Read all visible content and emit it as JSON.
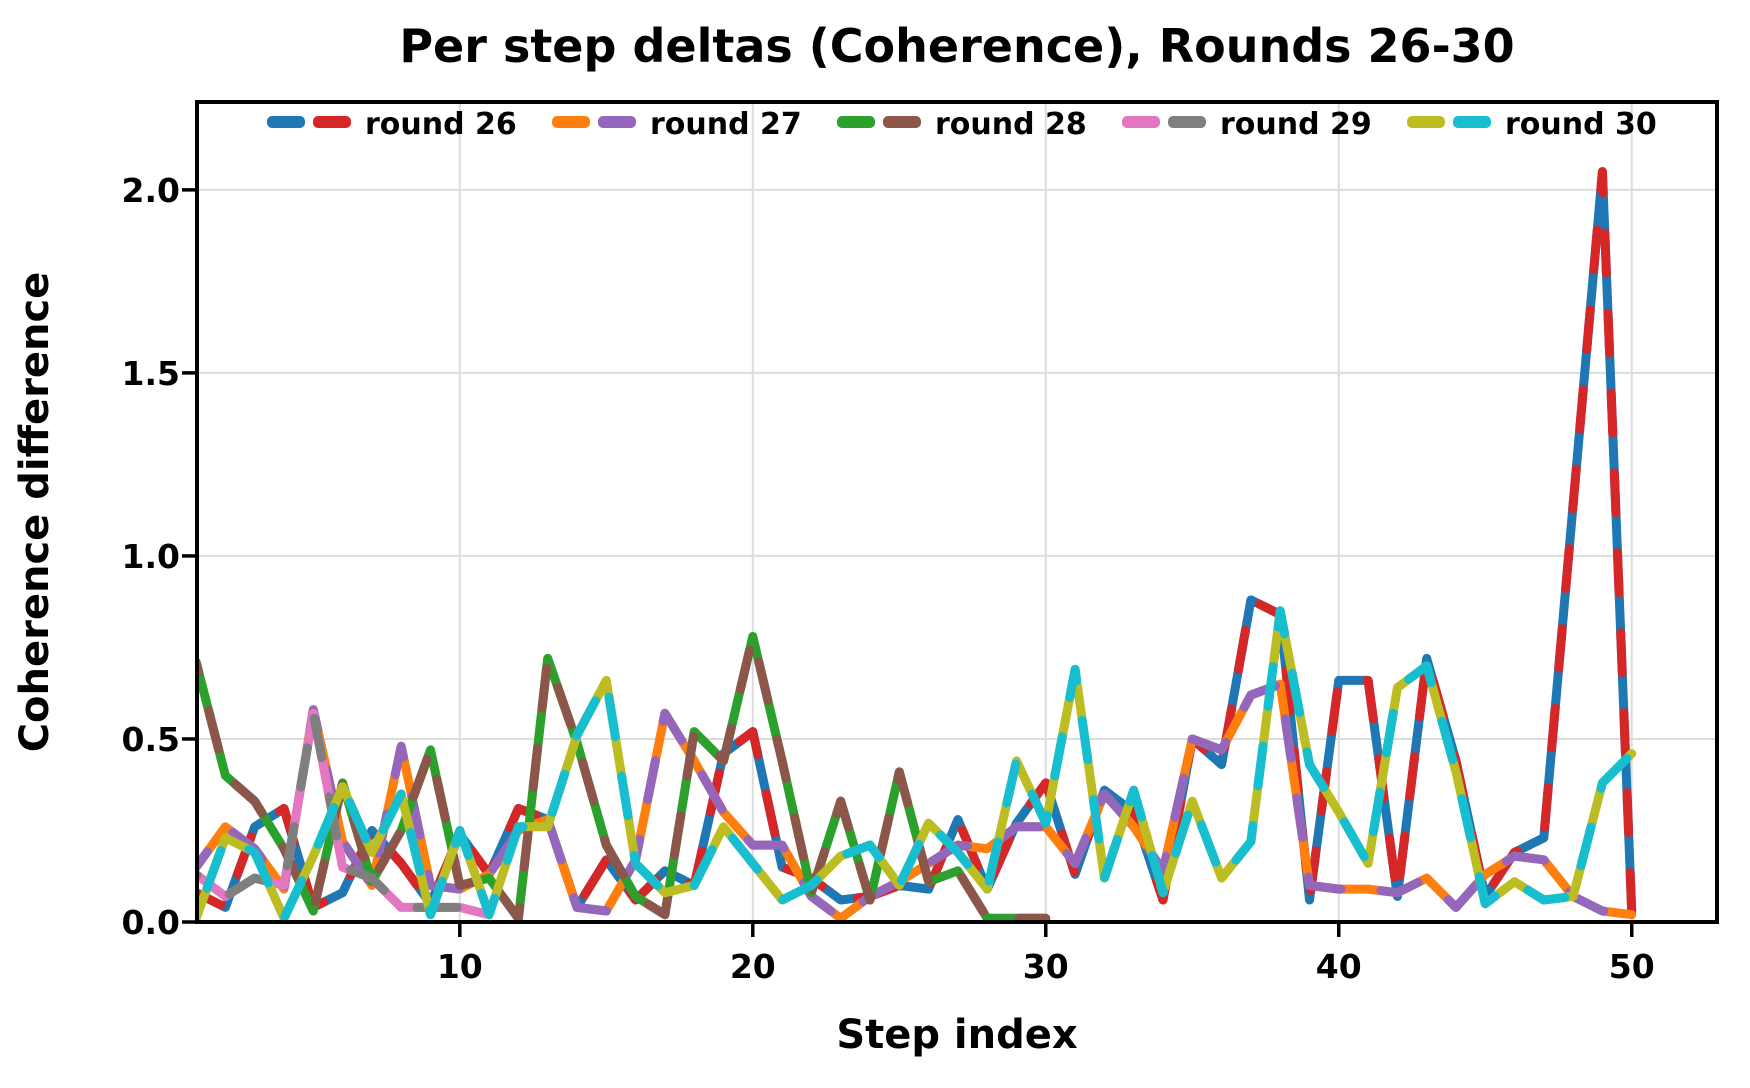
{
  "chart_data": {
    "type": "line",
    "title": "Per step deltas (Coherence), Rounds 26-30",
    "xlabel": "Step index",
    "ylabel": "Coherence difference",
    "xlim": [
      1.03,
      52.91
    ],
    "ylim": [
      0,
      2.24
    ],
    "xticks": [
      10,
      20,
      30,
      40,
      50
    ],
    "yticks": [
      0.0,
      0.5,
      1.0,
      1.5,
      2.0
    ],
    "grid": true,
    "grid_color": "#dcdcdc",
    "legend_position": "top-center",
    "line_width": 9,
    "series": [
      {
        "name": "round 26",
        "colors": [
          "#1f77b4",
          "#d62728"
        ],
        "x_start": 1,
        "values": [
          0.08,
          0.04,
          0.26,
          0.31,
          0.04,
          0.08,
          0.25,
          0.16,
          0.05,
          0.24,
          0.13,
          0.31,
          0.28,
          0.04,
          0.17,
          0.06,
          0.14,
          0.1,
          0.46,
          0.52,
          0.15,
          0.12,
          0.06,
          0.07,
          0.1,
          0.09,
          0.28,
          0.09,
          0.27,
          0.38,
          0.13,
          0.36,
          0.3,
          0.06,
          0.5,
          0.43,
          0.88,
          0.84,
          0.06,
          0.66,
          0.66,
          0.07,
          0.72,
          0.44,
          0.07,
          0.19,
          0.23,
          1.14,
          2.05,
          0.03
        ]
      },
      {
        "name": "round 27",
        "colors": [
          "#ff7f0e",
          "#9467bd"
        ],
        "x_start": 1,
        "values": [
          0.15,
          0.26,
          0.2,
          0.09,
          0.58,
          0.22,
          0.1,
          0.48,
          0.1,
          0.09,
          0.13,
          0.25,
          0.28,
          0.04,
          0.03,
          0.17,
          0.57,
          0.44,
          0.3,
          0.21,
          0.21,
          0.07,
          0.01,
          0.07,
          0.11,
          0.16,
          0.21,
          0.2,
          0.26,
          0.26,
          0.16,
          0.35,
          0.26,
          0.14,
          0.5,
          0.47,
          0.62,
          0.65,
          0.1,
          0.09,
          0.09,
          0.08,
          0.12,
          0.04,
          0.13,
          0.18,
          0.17,
          0.07,
          0.03,
          0.02
        ]
      },
      {
        "name": "round 28",
        "colors": [
          "#2ca02c",
          "#8c564b"
        ],
        "x_start": 1,
        "values": [
          0.71,
          0.4,
          0.33,
          0.2,
          0.03,
          0.38,
          0.11,
          0.25,
          0.47,
          0.1,
          0.12,
          0.01,
          0.72,
          0.49,
          0.21,
          0.07,
          0.02,
          0.52,
          0.44,
          0.78,
          0.44,
          0.08,
          0.33,
          0.06,
          0.41,
          0.11,
          0.14,
          0.01,
          0.01,
          0.01
        ]
      },
      {
        "name": "round 29",
        "colors": [
          "#e377c2",
          "#7f7f7f"
        ],
        "x_start": 1,
        "values": [
          0.13,
          0.07,
          0.12,
          0.1,
          0.57,
          0.15,
          0.12,
          0.04,
          0.04,
          0.04,
          0.02
        ]
      },
      {
        "name": "round 30",
        "colors": [
          "#bcbd22",
          "#17becf"
        ],
        "x_start": 1,
        "values": [
          0.01,
          0.23,
          0.19,
          0.01,
          0.18,
          0.37,
          0.19,
          0.35,
          0.02,
          0.25,
          0.02,
          0.26,
          0.26,
          0.51,
          0.66,
          0.16,
          0.08,
          0.1,
          0.26,
          0.16,
          0.06,
          0.1,
          0.18,
          0.21,
          0.1,
          0.27,
          0.19,
          0.09,
          0.44,
          0.27,
          0.69,
          0.12,
          0.36,
          0.08,
          0.33,
          0.12,
          0.22,
          0.85,
          0.43,
          0.3,
          0.16,
          0.64,
          0.7,
          0.41,
          0.05,
          0.11,
          0.06,
          0.07,
          0.38,
          0.46
        ]
      }
    ]
  }
}
